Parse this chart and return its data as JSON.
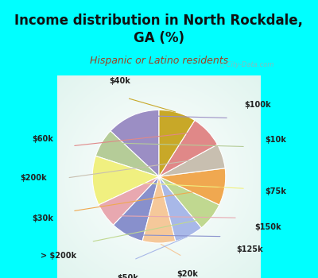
{
  "title": "Income distribution in North Rockdale,\nGA (%)",
  "subtitle": "Hispanic or Latino residents",
  "watermark": "ⓘ City-Data.com",
  "labels": [
    "$100k",
    "$10k",
    "$75k",
    "$150k",
    "$125k",
    "$20k",
    "$50k",
    "> $200k",
    "$30k",
    "$200k",
    "$60k",
    "$40k"
  ],
  "values": [
    13,
    7,
    12,
    6,
    8,
    8,
    7,
    7,
    9,
    6,
    8,
    9
  ],
  "colors": [
    "#9b8ec4",
    "#b5cc98",
    "#f0f080",
    "#e8a8b0",
    "#8890cc",
    "#f5c89a",
    "#a8b8e8",
    "#c0d890",
    "#f0a850",
    "#c8bfb0",
    "#e08888",
    "#c8a828"
  ],
  "bg_top": "#00ffff",
  "bg_chart_color": "#d4f0e8",
  "title_color": "#111111",
  "subtitle_color": "#a04020",
  "startangle": 90,
  "fig_width": 4.0,
  "fig_height": 3.5,
  "title_fontsize": 12,
  "subtitle_fontsize": 9
}
